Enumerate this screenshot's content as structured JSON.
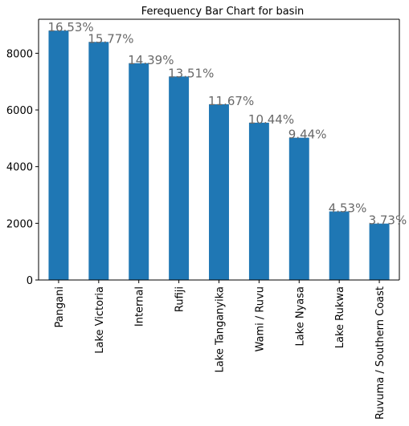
{
  "chart_data": {
    "type": "bar",
    "title": "Ferequency Bar Chart for basin",
    "xlabel": "",
    "ylabel": "",
    "categories": [
      "Pangani",
      "Lake Victoria",
      "Internal",
      "Rufiji",
      "Lake Tanganyika",
      "Wami / Ruvu",
      "Lake Nyasa",
      "Lake Rukwa",
      "Ruvuma / Southern Coast"
    ],
    "values": [
      8800,
      8400,
      7650,
      7180,
      6200,
      5550,
      5020,
      2420,
      1990
    ],
    "percent_labels": [
      "16.53%",
      "15.77%",
      "14.39%",
      "13.51%",
      "11.67%",
      "10.44%",
      "9.44%",
      "4.53%",
      "3.73%"
    ],
    "ylim": [
      0,
      9200
    ],
    "yticks": [
      0,
      2000,
      4000,
      6000,
      8000
    ],
    "grid": false,
    "legend": "none",
    "colors": {
      "bar": "#1f77b4",
      "percent_label": "#696969",
      "axis": "#000000"
    }
  }
}
